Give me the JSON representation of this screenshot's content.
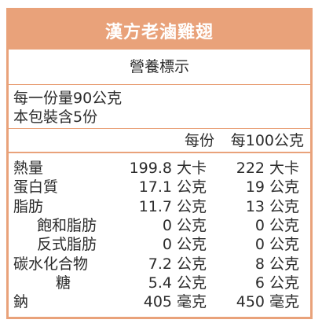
{
  "chart_data": {
    "type": "table",
    "title": "漢方老滷雞翅",
    "subtitle": "營養標示",
    "serving_size": "每一份量90公克",
    "servings_per_package": "本包裝含5份",
    "columns": [
      "每份",
      "每100公克"
    ],
    "rows": [
      {
        "name": "熱量",
        "per_serving": 199.8,
        "per_serving_unit": "大卡",
        "per_100g": 222,
        "per_100g_unit": "大卡"
      },
      {
        "name": "蛋白質",
        "per_serving": 17.1,
        "per_serving_unit": "公克",
        "per_100g": 19,
        "per_100g_unit": "公克"
      },
      {
        "name": "脂肪",
        "per_serving": 11.7,
        "per_serving_unit": "公克",
        "per_100g": 13,
        "per_100g_unit": "公克"
      },
      {
        "name": "飽和脂肪",
        "per_serving": 0,
        "per_serving_unit": "公克",
        "per_100g": 0,
        "per_100g_unit": "公克"
      },
      {
        "name": "反式脂肪",
        "per_serving": 0,
        "per_serving_unit": "公克",
        "per_100g": 0,
        "per_100g_unit": "公克"
      },
      {
        "name": "碳水化合物",
        "per_serving": 7.2,
        "per_serving_unit": "公克",
        "per_100g": 8,
        "per_100g_unit": "公克"
      },
      {
        "name": "糖",
        "per_serving": 5.4,
        "per_serving_unit": "公克",
        "per_100g": 6,
        "per_100g_unit": "公克"
      },
      {
        "name": "鈉",
        "per_serving": 405,
        "per_serving_unit": "毫克",
        "per_100g": 450,
        "per_100g_unit": "毫克"
      }
    ]
  },
  "colors": {
    "accent": "#E9A27A",
    "header_text": "#FFFFFF",
    "text": "#2B2B2B"
  }
}
